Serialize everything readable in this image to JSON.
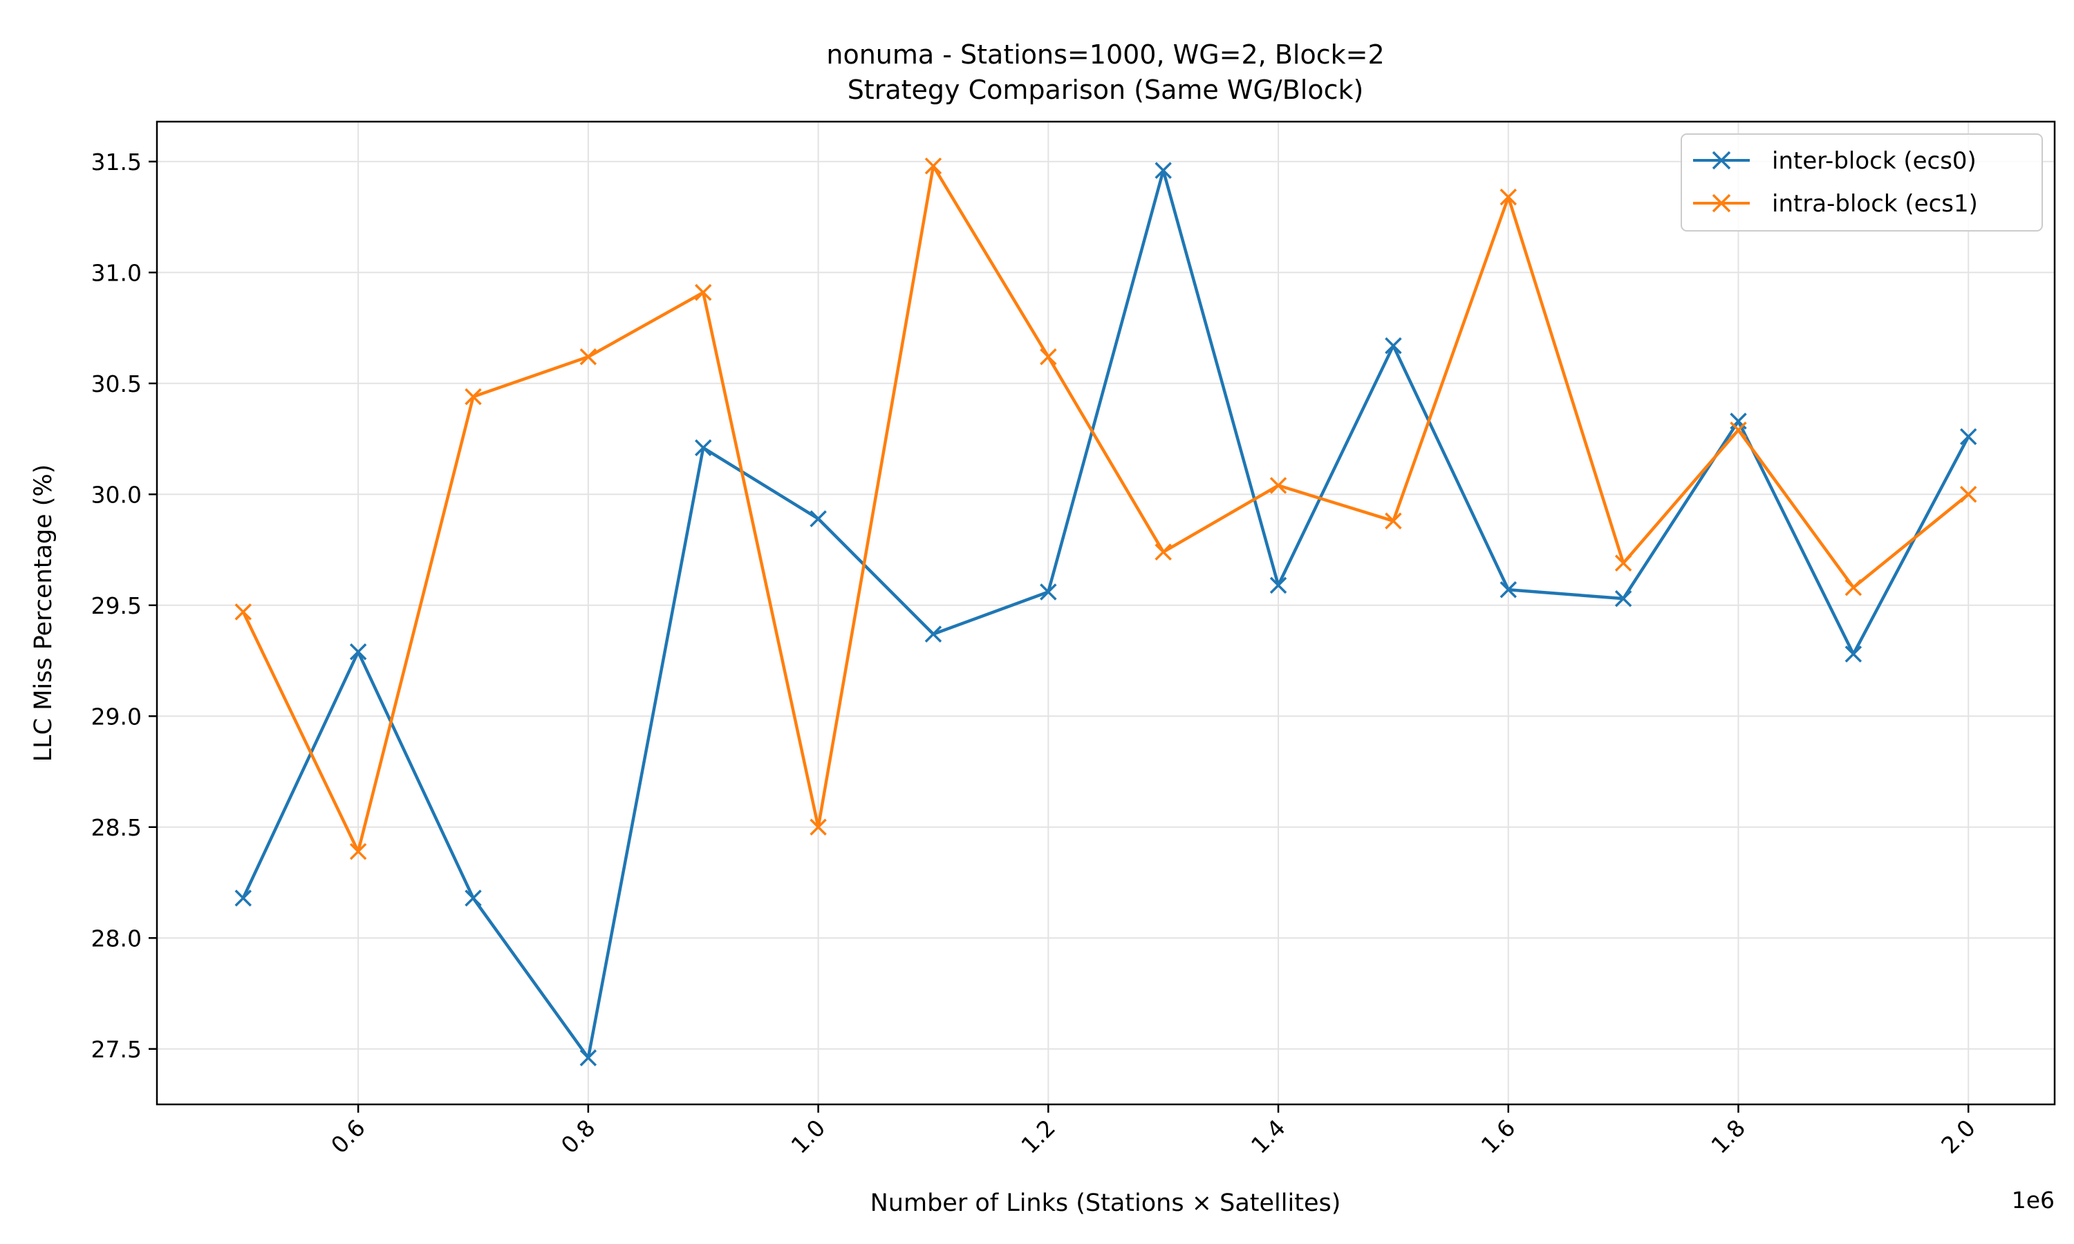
{
  "chart_data": {
    "type": "line",
    "title": "nonuma - Stations=1000, WG=2, Block=2",
    "subtitle": "Strategy Comparison (Same WG/Block)",
    "xlabel": "Number of Links (Stations × Satellites)",
    "ylabel": "LLC Miss Percentage (%)",
    "x_offset_label": "1e6",
    "x_scale": 1000000,
    "xlim": [
      0.425,
      2.075
    ],
    "ylim": [
      27.25,
      31.68
    ],
    "xticks": [
      0.6,
      0.8,
      1.0,
      1.2,
      1.4,
      1.6,
      1.8,
      2.0
    ],
    "xtick_labels": [
      "0.6",
      "0.8",
      "1.0",
      "1.2",
      "1.4",
      "1.6",
      "1.8",
      "2.0"
    ],
    "yticks": [
      27.5,
      28.0,
      28.5,
      29.0,
      29.5,
      30.0,
      30.5,
      31.0,
      31.5
    ],
    "ytick_labels": [
      "27.5",
      "28.0",
      "28.5",
      "29.0",
      "29.5",
      "30.0",
      "30.5",
      "31.0",
      "31.5"
    ],
    "grid": true,
    "legend_position": "top-right",
    "x": [
      0.5,
      0.6,
      0.7,
      0.8,
      0.9,
      1.0,
      1.1,
      1.2,
      1.3,
      1.4,
      1.5,
      1.6,
      1.7,
      1.8,
      1.9,
      2.0
    ],
    "series": [
      {
        "name": "inter-block (ecs0)",
        "color": "#1f77b4",
        "marker": "x",
        "values": [
          28.18,
          29.29,
          28.18,
          27.46,
          30.21,
          29.89,
          29.37,
          29.56,
          31.46,
          29.59,
          30.67,
          29.57,
          29.53,
          30.33,
          29.28,
          30.26
        ]
      },
      {
        "name": "intra-block (ecs1)",
        "color": "#ff7f0e",
        "marker": "x",
        "values": [
          29.47,
          28.39,
          30.44,
          30.62,
          30.91,
          28.5,
          31.48,
          30.62,
          29.74,
          30.04,
          29.88,
          31.34,
          29.69,
          30.29,
          29.58,
          30.0
        ]
      }
    ]
  }
}
